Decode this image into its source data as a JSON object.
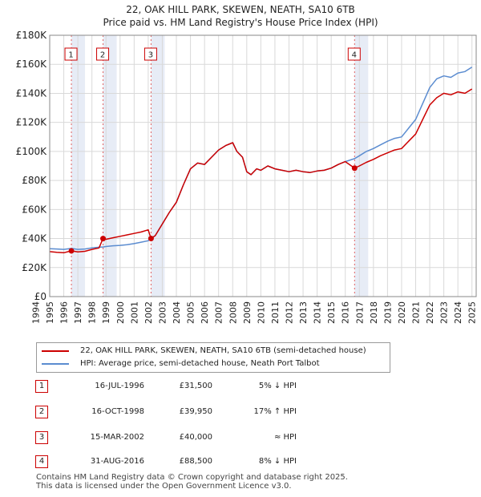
{
  "chart_data": {
    "type": "line",
    "title": "22, OAK HILL PARK, SKEWEN, NEATH, SA10 6TB",
    "subtitle": "Price paid vs. HM Land Registry's House Price Index (HPI)",
    "xlim": [
      1995.0,
      2025.3
    ],
    "ylim": [
      0,
      180000
    ],
    "x_ticks": [
      "1994",
      "1995",
      "1996",
      "1997",
      "1998",
      "1999",
      "2000",
      "2001",
      "2002",
      "2003",
      "2004",
      "2005",
      "2006",
      "2007",
      "2008",
      "2009",
      "2010",
      "2011",
      "2012",
      "2013",
      "2014",
      "2015",
      "2016",
      "2017",
      "2018",
      "2019",
      "2020",
      "2021",
      "2022",
      "2023",
      "2024",
      "2025"
    ],
    "y_ticks": [
      {
        "value": 0,
        "label": "£0"
      },
      {
        "value": 20000,
        "label": "£20K"
      },
      {
        "value": 40000,
        "label": "£40K"
      },
      {
        "value": 60000,
        "label": "£60K"
      },
      {
        "value": 80000,
        "label": "£80K"
      },
      {
        "value": 100000,
        "label": "£100K"
      },
      {
        "value": 120000,
        "label": "£120K"
      },
      {
        "value": 140000,
        "label": "£140K"
      },
      {
        "value": 160000,
        "label": "£160K"
      },
      {
        "value": 180000,
        "label": "£180K"
      }
    ],
    "series": [
      {
        "name": "22, OAK HILL PARK, SKEWEN, NEATH, SA10 6TB (semi-detached house)",
        "color": "#cc0000",
        "points": [
          [
            1995.0,
            31000
          ],
          [
            1995.5,
            30500
          ],
          [
            1996.0,
            30200
          ],
          [
            1996.54,
            31500
          ],
          [
            1997.0,
            30800
          ],
          [
            1997.5,
            31200
          ],
          [
            1998.0,
            32500
          ],
          [
            1998.5,
            33500
          ],
          [
            1998.79,
            39950
          ],
          [
            1999.0,
            39500
          ],
          [
            1999.5,
            40500
          ],
          [
            2000.0,
            41500
          ],
          [
            2000.5,
            42500
          ],
          [
            2001.0,
            43500
          ],
          [
            2001.5,
            44500
          ],
          [
            2002.0,
            46000
          ],
          [
            2002.2,
            40000
          ],
          [
            2002.5,
            42000
          ],
          [
            2003.0,
            50000
          ],
          [
            2003.5,
            58000
          ],
          [
            2004.0,
            65000
          ],
          [
            2004.5,
            77000
          ],
          [
            2005.0,
            88000
          ],
          [
            2005.5,
            92000
          ],
          [
            2006.0,
            91000
          ],
          [
            2006.5,
            96000
          ],
          [
            2007.0,
            101000
          ],
          [
            2007.5,
            104000
          ],
          [
            2008.0,
            106000
          ],
          [
            2008.3,
            100000
          ],
          [
            2008.7,
            96000
          ],
          [
            2009.0,
            86000
          ],
          [
            2009.3,
            84000
          ],
          [
            2009.7,
            88000
          ],
          [
            2010.0,
            87000
          ],
          [
            2010.5,
            90000
          ],
          [
            2011.0,
            88000
          ],
          [
            2011.5,
            87000
          ],
          [
            2012.0,
            86000
          ],
          [
            2012.5,
            87000
          ],
          [
            2013.0,
            86000
          ],
          [
            2013.5,
            85500
          ],
          [
            2014.0,
            86500
          ],
          [
            2014.5,
            87000
          ],
          [
            2015.0,
            88500
          ],
          [
            2015.5,
            91000
          ],
          [
            2016.0,
            93000
          ],
          [
            2016.66,
            88500
          ],
          [
            2017.0,
            90000
          ],
          [
            2017.5,
            92500
          ],
          [
            2018.0,
            94500
          ],
          [
            2018.5,
            97000
          ],
          [
            2019.0,
            99000
          ],
          [
            2019.5,
            101000
          ],
          [
            2020.0,
            102000
          ],
          [
            2020.5,
            107000
          ],
          [
            2021.0,
            112000
          ],
          [
            2021.5,
            122000
          ],
          [
            2022.0,
            132000
          ],
          [
            2022.5,
            137000
          ],
          [
            2023.0,
            140000
          ],
          [
            2023.5,
            139000
          ],
          [
            2024.0,
            141000
          ],
          [
            2024.5,
            140000
          ],
          [
            2025.0,
            143000
          ]
        ]
      },
      {
        "name": "HPI: Average price, semi-detached house, Neath Port Talbot",
        "color": "#5b8cd0",
        "points": [
          [
            1995.0,
            33000
          ],
          [
            1995.5,
            32800
          ],
          [
            1996.0,
            32500
          ],
          [
            1996.54,
            33200
          ],
          [
            1997.0,
            32500
          ],
          [
            1997.5,
            32800
          ],
          [
            1998.0,
            33500
          ],
          [
            1998.5,
            34000
          ],
          [
            1998.79,
            34200
          ],
          [
            1999.0,
            34500
          ],
          [
            1999.5,
            35000
          ],
          [
            2000.0,
            35300
          ],
          [
            2000.5,
            35800
          ],
          [
            2001.0,
            36500
          ],
          [
            2001.5,
            37500
          ],
          [
            2002.0,
            38500
          ],
          [
            2002.2,
            40000
          ],
          [
            2002.5,
            42000
          ],
          [
            2003.0,
            50000
          ],
          [
            2003.5,
            58000
          ],
          [
            2004.0,
            65000
          ],
          [
            2004.5,
            77000
          ],
          [
            2005.0,
            88000
          ],
          [
            2005.5,
            92000
          ],
          [
            2006.0,
            91000
          ],
          [
            2006.5,
            96000
          ],
          [
            2007.0,
            101000
          ],
          [
            2007.5,
            104000
          ],
          [
            2008.0,
            106000
          ],
          [
            2008.3,
            100000
          ],
          [
            2008.7,
            96000
          ],
          [
            2009.0,
            86000
          ],
          [
            2009.3,
            84000
          ],
          [
            2009.7,
            88000
          ],
          [
            2010.0,
            87000
          ],
          [
            2010.5,
            90000
          ],
          [
            2011.0,
            88000
          ],
          [
            2011.5,
            87000
          ],
          [
            2012.0,
            86000
          ],
          [
            2012.5,
            87000
          ],
          [
            2013.0,
            86000
          ],
          [
            2013.5,
            85500
          ],
          [
            2014.0,
            86500
          ],
          [
            2014.5,
            87000
          ],
          [
            2015.0,
            88500
          ],
          [
            2015.5,
            91000
          ],
          [
            2016.0,
            93000
          ],
          [
            2016.66,
            95000
          ],
          [
            2017.0,
            97000
          ],
          [
            2017.5,
            100000
          ],
          [
            2018.0,
            102000
          ],
          [
            2018.5,
            104500
          ],
          [
            2019.0,
            107000
          ],
          [
            2019.5,
            109000
          ],
          [
            2020.0,
            110000
          ],
          [
            2020.5,
            116000
          ],
          [
            2021.0,
            122000
          ],
          [
            2021.5,
            133000
          ],
          [
            2022.0,
            144000
          ],
          [
            2022.5,
            150000
          ],
          [
            2023.0,
            152000
          ],
          [
            2023.5,
            151000
          ],
          [
            2024.0,
            154000
          ],
          [
            2024.5,
            155000
          ],
          [
            2025.0,
            158000
          ]
        ]
      }
    ],
    "sales": [
      {
        "id": "1",
        "x": 1996.54,
        "y": 31500
      },
      {
        "id": "2",
        "x": 1998.79,
        "y": 39950
      },
      {
        "id": "3",
        "x": 2002.2,
        "y": 40000
      },
      {
        "id": "4",
        "x": 2016.66,
        "y": 88500
      }
    ]
  },
  "transactions": [
    {
      "num": "1",
      "date": "16-JUL-1996",
      "price": "£31,500",
      "hpi": "5% ↓ HPI"
    },
    {
      "num": "2",
      "date": "16-OCT-1998",
      "price": "£39,950",
      "hpi": "17% ↑ HPI"
    },
    {
      "num": "3",
      "date": "15-MAR-2002",
      "price": "£40,000",
      "hpi": "≈ HPI"
    },
    {
      "num": "4",
      "date": "31-AUG-2016",
      "price": "£88,500",
      "hpi": "8% ↓ HPI"
    }
  ],
  "footer": {
    "line1": "Contains HM Land Registry data © Crown copyright and database right 2025.",
    "line2": "This data is licensed under the Open Government Licence v3.0."
  },
  "colors": {
    "price_line": "#cc0000",
    "hpi_line": "#5b8cd0",
    "sale_band": "#dde4f2",
    "plot_bg": "#ffffff",
    "grid": "#d9d9d9"
  }
}
